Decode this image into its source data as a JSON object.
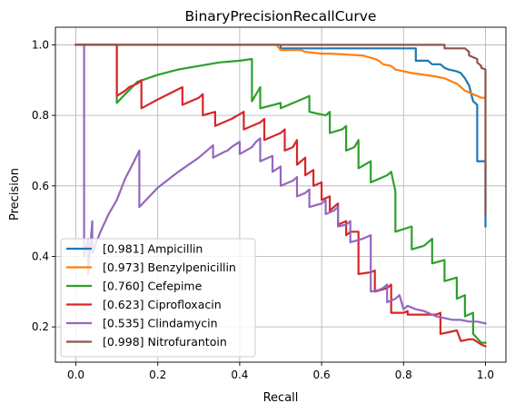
{
  "chart_data": {
    "type": "line",
    "title": "BinaryPrecisionRecallCurve",
    "xlabel": "Recall",
    "ylabel": "Precision",
    "xlim": [
      -0.05,
      1.05
    ],
    "ylim": [
      0.1,
      1.05
    ],
    "xticks": [
      "0.0",
      "0.2",
      "0.4",
      "0.6",
      "0.8",
      "1.0"
    ],
    "yticks": [
      "0.2",
      "0.4",
      "0.6",
      "0.8",
      "1.0"
    ],
    "grid": true,
    "legend_position": "lower-left",
    "series": [
      {
        "name": "[0.981] Ampicillin",
        "color": "#1f77b4",
        "x": [
          0.0,
          0.5,
          0.5,
          0.6,
          0.7,
          0.82,
          0.83,
          0.83,
          0.86,
          0.87,
          0.89,
          0.9,
          0.91,
          0.93,
          0.94,
          0.95,
          0.96,
          0.97,
          0.98,
          0.98,
          0.99,
          0.99,
          1.0,
          1.0
        ],
        "y": [
          1.0,
          1.0,
          0.99,
          0.99,
          0.99,
          0.99,
          0.99,
          0.955,
          0.955,
          0.945,
          0.945,
          0.935,
          0.93,
          0.925,
          0.92,
          0.905,
          0.885,
          0.84,
          0.83,
          0.67,
          0.67,
          0.67,
          0.67,
          0.485
        ]
      },
      {
        "name": "[0.973] Benzylpenicillin",
        "color": "#ff7f0e",
        "x": [
          0.0,
          0.49,
          0.5,
          0.55,
          0.56,
          0.6,
          0.62,
          0.7,
          0.73,
          0.74,
          0.75,
          0.77,
          0.78,
          0.8,
          0.82,
          0.85,
          0.88,
          0.9,
          0.92,
          0.93,
          0.94,
          0.95,
          0.96,
          0.97,
          0.98,
          0.99,
          1.0
        ],
        "y": [
          1.0,
          1.0,
          0.985,
          0.985,
          0.98,
          0.975,
          0.975,
          0.97,
          0.96,
          0.955,
          0.945,
          0.94,
          0.93,
          0.925,
          0.92,
          0.915,
          0.91,
          0.905,
          0.895,
          0.89,
          0.88,
          0.87,
          0.865,
          0.86,
          0.855,
          0.85,
          0.85
        ]
      },
      {
        "name": "[0.760] Cefepime",
        "color": "#2ca02c",
        "x": [
          0.0,
          0.1,
          0.1,
          0.12,
          0.15,
          0.2,
          0.25,
          0.3,
          0.35,
          0.4,
          0.43,
          0.43,
          0.45,
          0.45,
          0.5,
          0.5,
          0.56,
          0.57,
          0.57,
          0.61,
          0.62,
          0.62,
          0.65,
          0.66,
          0.66,
          0.68,
          0.69,
          0.69,
          0.72,
          0.72,
          0.76,
          0.77,
          0.78,
          0.78,
          0.82,
          0.82,
          0.85,
          0.86,
          0.87,
          0.87,
          0.9,
          0.9,
          0.93,
          0.93,
          0.95,
          0.95,
          0.97,
          0.97,
          0.99,
          1.0
        ],
        "y": [
          1.0,
          1.0,
          0.835,
          0.86,
          0.895,
          0.915,
          0.93,
          0.94,
          0.95,
          0.955,
          0.96,
          0.84,
          0.88,
          0.82,
          0.835,
          0.82,
          0.85,
          0.855,
          0.81,
          0.8,
          0.81,
          0.75,
          0.76,
          0.77,
          0.7,
          0.71,
          0.73,
          0.65,
          0.67,
          0.61,
          0.63,
          0.64,
          0.585,
          0.47,
          0.485,
          0.42,
          0.43,
          0.44,
          0.45,
          0.38,
          0.39,
          0.33,
          0.34,
          0.28,
          0.29,
          0.23,
          0.24,
          0.18,
          0.155,
          0.155
        ]
      },
      {
        "name": "[0.623] Ciprofloxacin",
        "color": "#d62728",
        "x": [
          0.0,
          0.1,
          0.1,
          0.12,
          0.13,
          0.15,
          0.16,
          0.16,
          0.2,
          0.26,
          0.26,
          0.3,
          0.31,
          0.31,
          0.34,
          0.34,
          0.38,
          0.41,
          0.41,
          0.45,
          0.46,
          0.46,
          0.5,
          0.51,
          0.51,
          0.53,
          0.54,
          0.54,
          0.56,
          0.56,
          0.58,
          0.58,
          0.6,
          0.6,
          0.62,
          0.62,
          0.64,
          0.64,
          0.66,
          0.66,
          0.67,
          0.68,
          0.69,
          0.69,
          0.72,
          0.73,
          0.73,
          0.76,
          0.77,
          0.77,
          0.8,
          0.81,
          0.81,
          0.84,
          0.86,
          0.88,
          0.89,
          0.89,
          0.91,
          0.93,
          0.94,
          0.96,
          0.97,
          0.99,
          1.0
        ],
        "y": [
          1.0,
          1.0,
          0.855,
          0.87,
          0.88,
          0.89,
          0.9,
          0.82,
          0.845,
          0.88,
          0.83,
          0.85,
          0.86,
          0.8,
          0.81,
          0.77,
          0.79,
          0.81,
          0.76,
          0.78,
          0.79,
          0.73,
          0.75,
          0.76,
          0.7,
          0.71,
          0.73,
          0.66,
          0.68,
          0.63,
          0.645,
          0.6,
          0.61,
          0.56,
          0.57,
          0.53,
          0.55,
          0.49,
          0.5,
          0.46,
          0.47,
          0.47,
          0.47,
          0.35,
          0.355,
          0.36,
          0.3,
          0.31,
          0.32,
          0.24,
          0.24,
          0.245,
          0.235,
          0.235,
          0.235,
          0.235,
          0.24,
          0.18,
          0.185,
          0.19,
          0.16,
          0.165,
          0.165,
          0.15,
          0.145
        ]
      },
      {
        "name": "[0.535] Clindamycin",
        "color": "#9467bd",
        "x": [
          0.0,
          0.02,
          0.02,
          0.03,
          0.03,
          0.04,
          0.04,
          0.05,
          0.06,
          0.08,
          0.1,
          0.12,
          0.14,
          0.155,
          0.155,
          0.2,
          0.25,
          0.3,
          0.335,
          0.335,
          0.36,
          0.37,
          0.38,
          0.4,
          0.4,
          0.43,
          0.44,
          0.45,
          0.45,
          0.48,
          0.48,
          0.5,
          0.5,
          0.53,
          0.54,
          0.54,
          0.56,
          0.57,
          0.57,
          0.6,
          0.61,
          0.61,
          0.63,
          0.64,
          0.64,
          0.66,
          0.67,
          0.67,
          0.7,
          0.71,
          0.72,
          0.72,
          0.74,
          0.75,
          0.76,
          0.76,
          0.78,
          0.79,
          0.8,
          0.81,
          0.82,
          0.83,
          0.85,
          0.86,
          0.88,
          0.9,
          0.92,
          0.94,
          0.96,
          0.98,
          1.0
        ],
        "y": [
          1.0,
          1.0,
          0.4,
          0.45,
          0.35,
          0.5,
          0.41,
          0.44,
          0.47,
          0.52,
          0.56,
          0.62,
          0.665,
          0.7,
          0.54,
          0.595,
          0.64,
          0.68,
          0.715,
          0.68,
          0.695,
          0.7,
          0.71,
          0.725,
          0.69,
          0.71,
          0.725,
          0.735,
          0.67,
          0.685,
          0.64,
          0.655,
          0.6,
          0.615,
          0.625,
          0.57,
          0.58,
          0.59,
          0.54,
          0.55,
          0.56,
          0.52,
          0.53,
          0.54,
          0.485,
          0.49,
          0.5,
          0.44,
          0.45,
          0.455,
          0.46,
          0.3,
          0.305,
          0.31,
          0.32,
          0.27,
          0.28,
          0.29,
          0.25,
          0.26,
          0.255,
          0.25,
          0.245,
          0.24,
          0.23,
          0.225,
          0.22,
          0.22,
          0.215,
          0.215,
          0.21
        ]
      },
      {
        "name": "[0.998] Nitrofurantoin",
        "color": "#8c564b",
        "x": [
          0.0,
          0.9,
          0.9,
          0.95,
          0.96,
          0.96,
          0.98,
          0.98,
          0.99,
          0.99,
          1.0,
          1.0
        ],
        "y": [
          1.0,
          1.0,
          0.99,
          0.99,
          0.98,
          0.97,
          0.96,
          0.95,
          0.94,
          0.935,
          0.93,
          0.52
        ]
      }
    ]
  }
}
